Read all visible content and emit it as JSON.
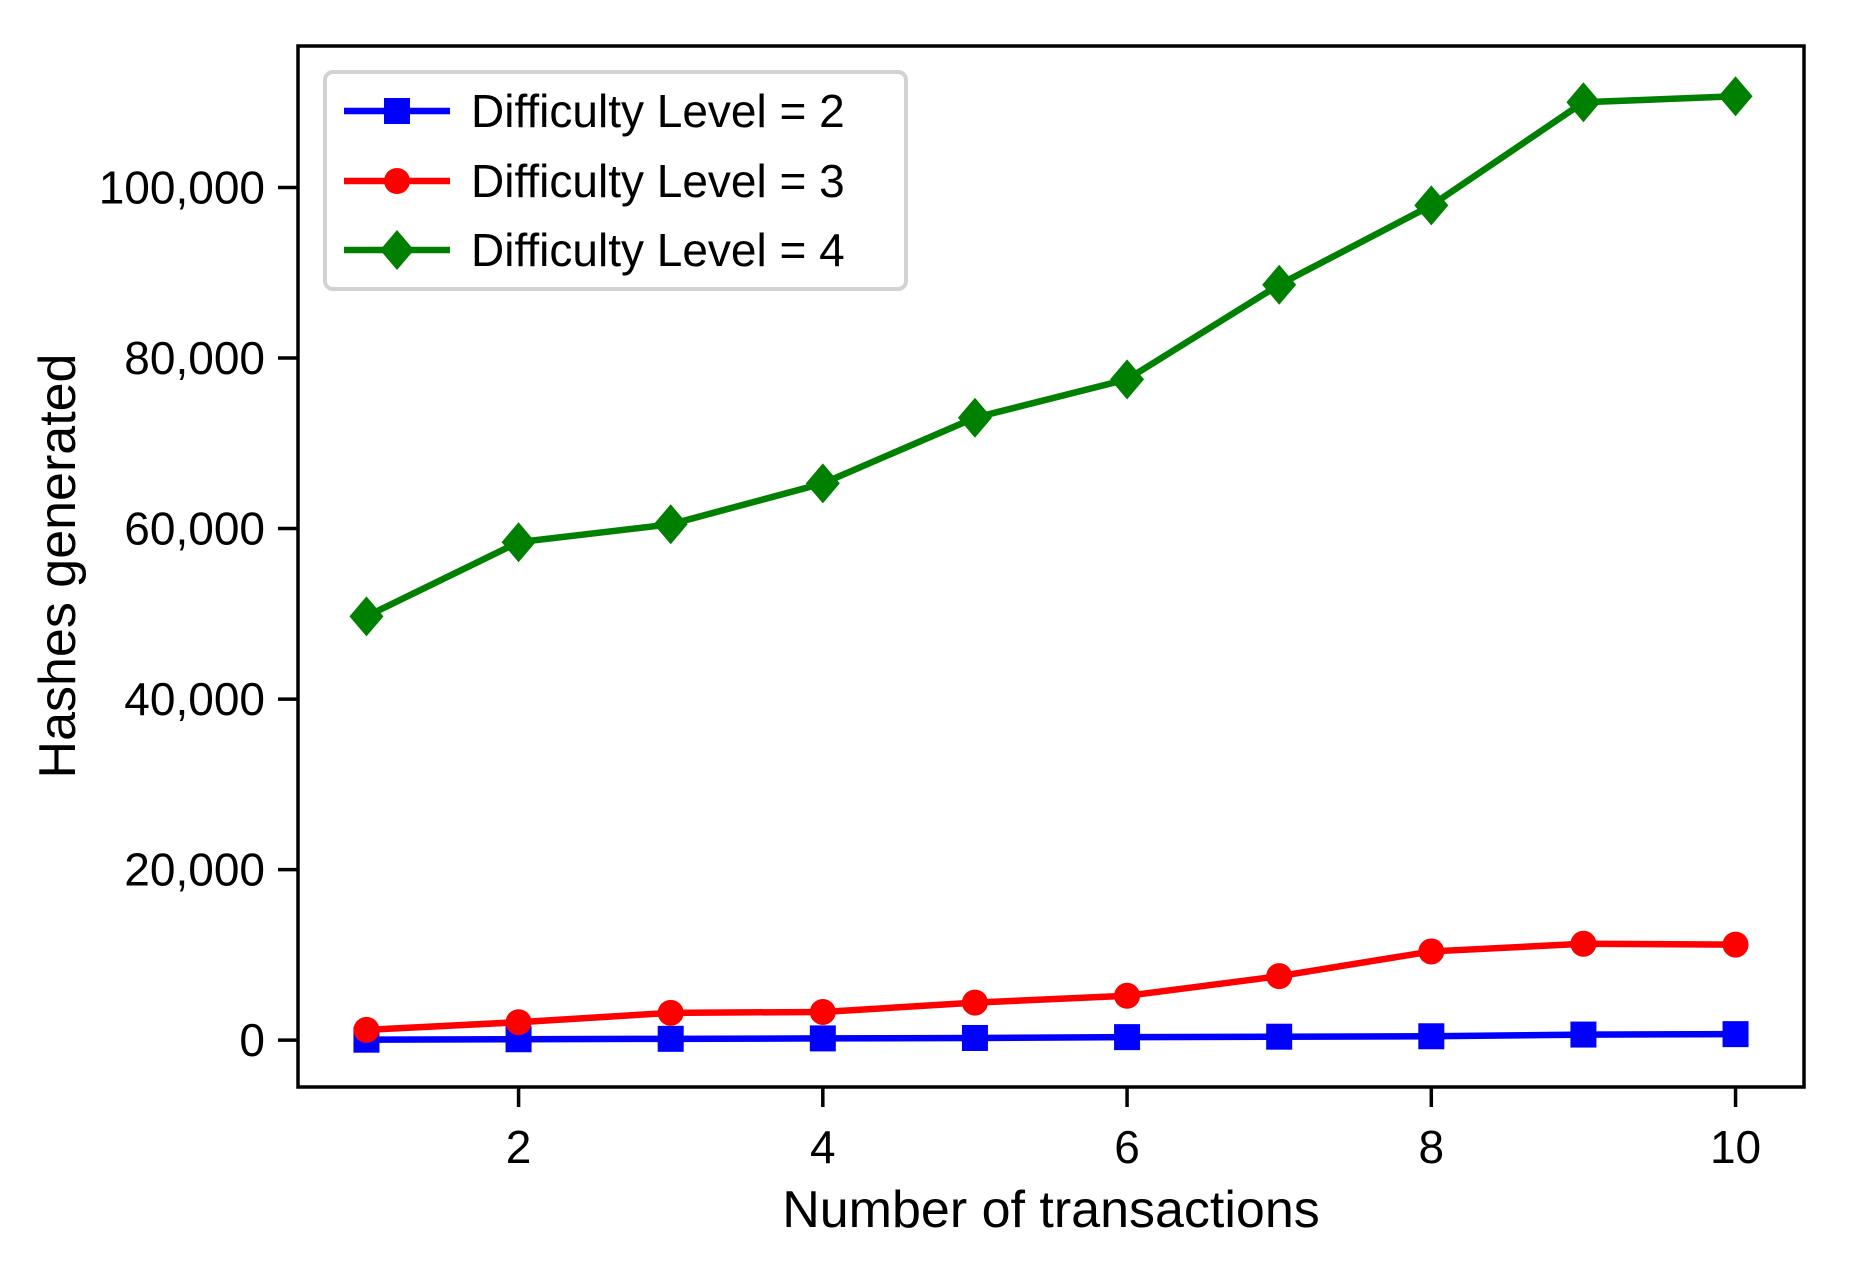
{
  "figure": {
    "background": "#ffffff",
    "text_color": "#000000",
    "spine_color": "#000000"
  },
  "chart_data": {
    "type": "line",
    "title": "",
    "xlabel": "Number of transactions",
    "ylabel": "Hashes generated",
    "x": [
      1,
      2,
      3,
      4,
      5,
      6,
      7,
      8,
      9,
      10
    ],
    "series": [
      {
        "name": "Difficulty Level = 2",
        "color": "#0000ff",
        "marker": "square",
        "values": [
          50,
          100,
          150,
          200,
          250,
          350,
          400,
          450,
          650,
          700
        ]
      },
      {
        "name": "Difficulty Level = 3",
        "color": "#ff0000",
        "marker": "circle",
        "values": [
          1200,
          2100,
          3200,
          3300,
          4400,
          5200,
          7500,
          10400,
          11300,
          11200
        ]
      },
      {
        "name": "Difficulty Level = 4",
        "color": "#008000",
        "marker": "diamond",
        "values": [
          49700,
          58400,
          60500,
          65300,
          73000,
          77500,
          88600,
          97900,
          110000,
          110700
        ]
      }
    ],
    "x_ticks": [
      2,
      4,
      6,
      8,
      10
    ],
    "y_ticks": [
      0,
      20000,
      40000,
      60000,
      80000,
      100000
    ],
    "y_tick_labels": [
      "0",
      "20,000",
      "40,000",
      "60,000",
      "80,000",
      "100,000"
    ],
    "xlim": [
      0.55,
      10.45
    ],
    "ylim": [
      -5500,
      116600
    ],
    "grid": false,
    "legend": {
      "position": "upper left",
      "border_color": "#d2d2d2"
    }
  }
}
